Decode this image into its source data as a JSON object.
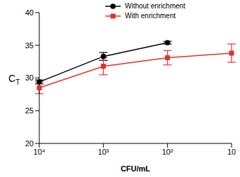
{
  "chart_data": {
    "type": "line",
    "x_label": "CFU/mL",
    "y_label": "CT",
    "categories": [
      "10⁴",
      "10³",
      "10²",
      "10"
    ],
    "series": [
      {
        "name": "Without enrichment",
        "color": "#000000",
        "marker": "circle",
        "values": [
          29.4,
          33.3,
          35.4,
          null
        ],
        "errors": [
          0.3,
          0.6,
          0.2,
          null
        ]
      },
      {
        "name": "With enrichment",
        "color": "#e0312a",
        "marker": "square",
        "values": [
          28.5,
          31.8,
          33.1,
          33.8
        ],
        "errors": [
          0.9,
          1.3,
          1.1,
          1.4
        ]
      }
    ],
    "ylim": [
      20,
      40
    ],
    "yticks": [
      20,
      25,
      30,
      35,
      40
    ],
    "grid": false,
    "legend": "top"
  }
}
